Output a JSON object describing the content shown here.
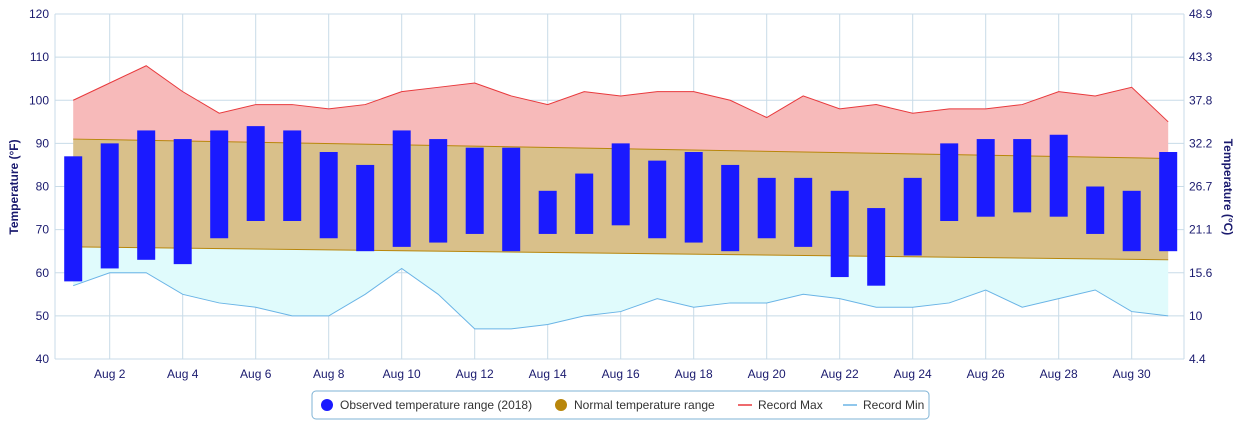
{
  "chart_data": {
    "type": "bar",
    "x": [
      1,
      2,
      3,
      4,
      5,
      6,
      7,
      8,
      9,
      10,
      11,
      12,
      13,
      14,
      15,
      16,
      17,
      18,
      19,
      20,
      21,
      22,
      23,
      24,
      25,
      26,
      27,
      28,
      29,
      30,
      31
    ],
    "x_tick_labels": [
      "Aug 2",
      "Aug 4",
      "Aug 6",
      "Aug 8",
      "Aug 10",
      "Aug 12",
      "Aug 14",
      "Aug 16",
      "Aug 18",
      "Aug 20",
      "Aug 22",
      "Aug 24",
      "Aug 26",
      "Aug 28",
      "Aug 30"
    ],
    "x_tick_days": [
      2,
      4,
      6,
      8,
      10,
      12,
      14,
      16,
      18,
      20,
      22,
      24,
      26,
      28,
      30
    ],
    "ylabel": "Temperature (°F)",
    "ylabel_right": "Temperature (°C)",
    "ylim": [
      40,
      120
    ],
    "y_ticks": [
      40,
      50,
      60,
      70,
      80,
      90,
      100,
      110,
      120
    ],
    "y_ticks_right": [
      "4.4",
      "10",
      "15.6",
      "21.1",
      "26.7",
      "32.2",
      "37.8",
      "43.3",
      "48.9"
    ],
    "grid": true,
    "legend_position": "bottom-center",
    "series": [
      {
        "name": "Observed temperature range (2018)",
        "kind": "range-bar",
        "color": "#1a1aff",
        "low": [
          58,
          61,
          63,
          62,
          68,
          72,
          72,
          68,
          65,
          66,
          67,
          69,
          65,
          69,
          69,
          71,
          68,
          67,
          65,
          68,
          66,
          59,
          57,
          64,
          72,
          73,
          74,
          73,
          69,
          65,
          65
        ],
        "high": [
          87,
          90,
          93,
          91,
          93,
          94,
          93,
          88,
          85,
          93,
          91,
          89,
          89,
          79,
          83,
          90,
          86,
          88,
          85,
          82,
          82,
          79,
          75,
          82,
          90,
          91,
          91,
          92,
          80,
          79,
          88
        ]
      },
      {
        "name": "Normal temperature range",
        "kind": "band",
        "color": "#b8860b",
        "fill": "#d9c08a",
        "low_start": 66,
        "low_end": 63,
        "high_start": 91,
        "high_end": 86.5
      },
      {
        "name": "Record Max",
        "kind": "area-line",
        "color": "#e8393c",
        "fill": "#f7baba",
        "values": [
          100,
          104,
          108,
          102,
          97,
          99,
          99,
          98,
          99,
          102,
          103,
          104,
          101,
          99,
          102,
          101,
          102,
          102,
          100,
          96,
          101,
          98,
          99,
          97,
          98,
          98,
          99,
          102,
          101,
          103,
          95
        ]
      },
      {
        "name": "Record Min",
        "kind": "area-line",
        "color": "#6ab4e6",
        "fill": "#e0fbfc",
        "values": [
          57,
          60,
          60,
          55,
          53,
          52,
          50,
          50,
          55,
          61,
          55,
          47,
          47,
          48,
          50,
          51,
          54,
          52,
          53,
          53,
          55,
          54,
          52,
          52,
          53,
          56,
          52,
          54,
          56,
          51,
          50
        ]
      }
    ]
  }
}
